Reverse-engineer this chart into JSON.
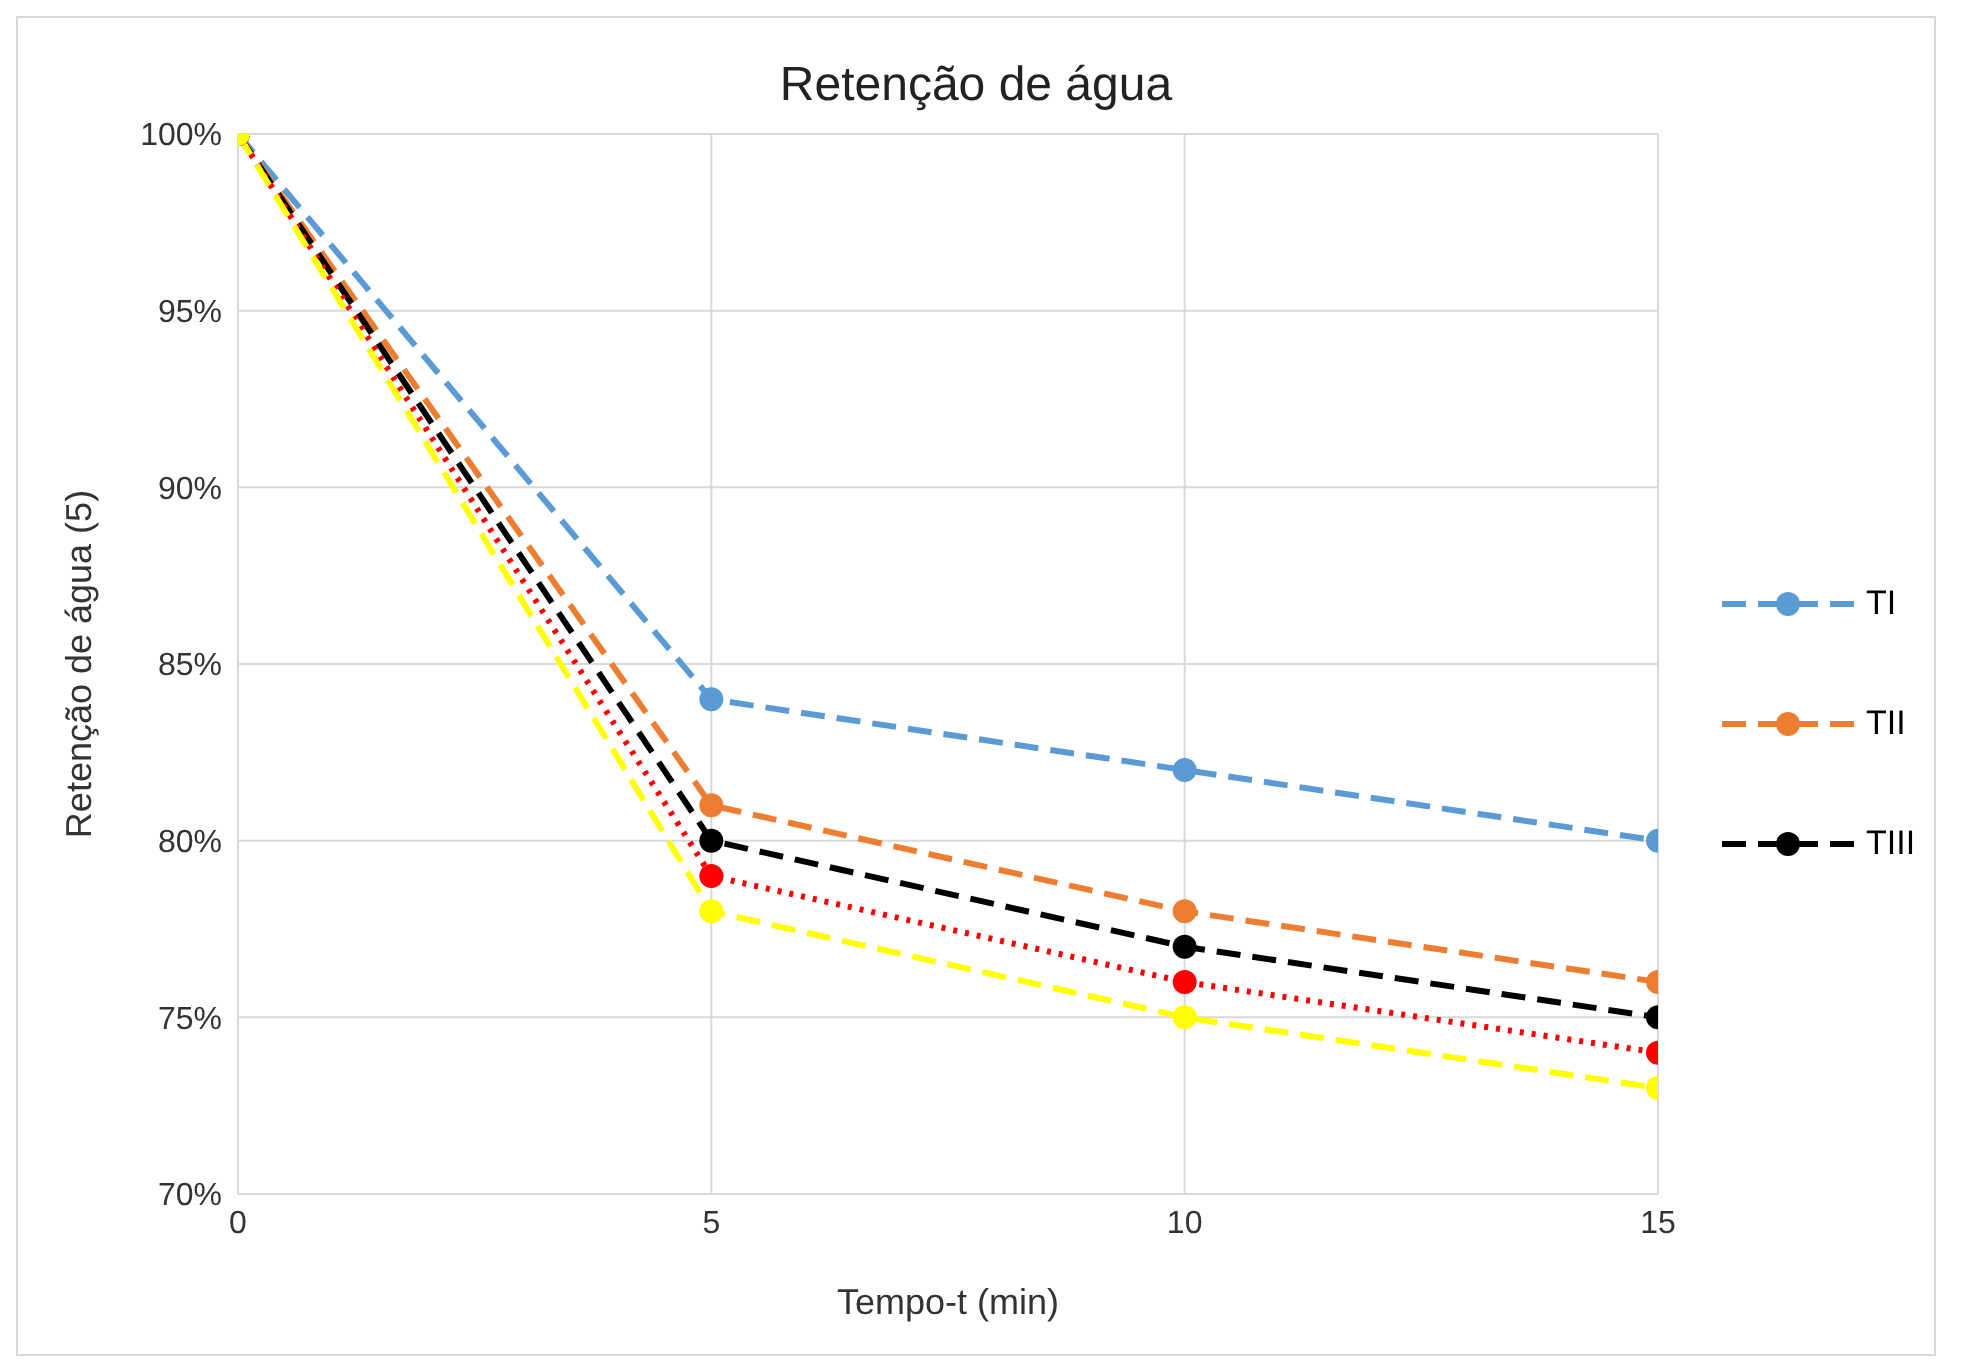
{
  "chart_data": {
    "type": "line",
    "title": "Retenção de água",
    "xlabel": "Tempo-t (min)",
    "ylabel": "Retenção de água (5)",
    "x": [
      0,
      5,
      10,
      15
    ],
    "xlim": [
      0,
      15
    ],
    "xticks": [
      0,
      5,
      10,
      15
    ],
    "ylim": [
      70,
      100
    ],
    "yticks": [
      {
        "value": 70,
        "label": "70%"
      },
      {
        "value": 75,
        "label": "75%"
      },
      {
        "value": 80,
        "label": "80%"
      },
      {
        "value": 85,
        "label": "85%"
      },
      {
        "value": 90,
        "label": "90%"
      },
      {
        "value": 95,
        "label": "95%"
      },
      {
        "value": 100,
        "label": "100%"
      }
    ],
    "grid": true,
    "legend": "right",
    "marker": "circle",
    "series": [
      {
        "name": "TI",
        "color": "#5b9bd5",
        "line_style": "dashed",
        "values": [
          100,
          84,
          82,
          80
        ]
      },
      {
        "name": "TII",
        "color": "#ed7d31",
        "line_style": "dashed",
        "values": [
          100,
          81,
          78,
          76
        ]
      },
      {
        "name": "TIII",
        "color": "#000000",
        "line_style": "dashed",
        "values": [
          100,
          80,
          77,
          75
        ]
      },
      {
        "color": "#ff0000",
        "line_style": "dotted",
        "values": [
          100,
          79,
          76,
          74
        ]
      },
      {
        "color": "#ffff00",
        "line_style": "dashed",
        "values": [
          100,
          78,
          75,
          73
        ]
      }
    ]
  }
}
